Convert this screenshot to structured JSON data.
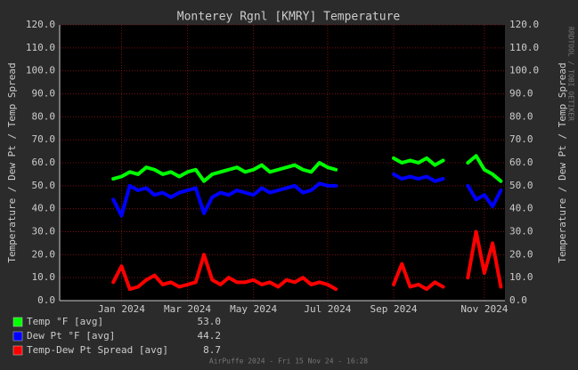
{
  "chart_data": {
    "type": "line",
    "title": "Monterey Rgnl [KMRY] Temperature",
    "y_label": "Temperature / Dew Pt / Temp Spread",
    "side_text": "RRDTOOL / TOBI OETIKER",
    "footer": "AirPuffe 2024 - Fri 15 Nov 24 - 16:28",
    "categories": [
      null,
      null,
      null,
      null,
      null,
      null,
      null,
      "Jan 2024",
      null,
      null,
      null,
      null,
      null,
      null,
      null,
      "Mar 2024",
      null,
      null,
      null,
      null,
      null,
      null,
      null,
      "May 2024",
      null,
      null,
      null,
      null,
      null,
      null,
      null,
      null,
      "Jul 2024",
      null,
      null,
      null,
      null,
      null,
      null,
      null,
      "Sep 2024",
      null,
      null,
      null,
      null,
      null,
      null,
      null,
      null,
      null,
      null,
      "Nov 2024",
      null,
      null
    ],
    "ylim": [
      0,
      120
    ],
    "yticks": [
      {
        "value": 0,
        "label": "0.0"
      },
      {
        "value": 10,
        "label": "10.0"
      },
      {
        "value": 20,
        "label": "20.0"
      },
      {
        "value": 30,
        "label": "30.0"
      },
      {
        "value": 40,
        "label": "40.0"
      },
      {
        "value": 50,
        "label": "50.0"
      },
      {
        "value": 60,
        "label": "60.0"
      },
      {
        "value": 70,
        "label": "70.0"
      },
      {
        "value": 80,
        "label": "80.0"
      },
      {
        "value": 90,
        "label": "90.0"
      },
      {
        "value": 100,
        "label": "100.0"
      },
      {
        "value": 110,
        "label": "110.0"
      },
      {
        "value": 120,
        "label": "120.0"
      }
    ],
    "grid": true,
    "series": [
      {
        "name": "Temp °F [avg]",
        "legend_value": "53.0",
        "color": "#00ff00",
        "values": [
          null,
          null,
          null,
          null,
          null,
          null,
          53,
          54,
          56,
          55,
          58,
          57,
          55,
          56,
          54,
          56,
          57,
          52,
          55,
          56,
          57,
          58,
          56,
          57,
          59,
          56,
          57,
          58,
          59,
          57,
          56,
          60,
          58,
          57,
          null,
          null,
          null,
          null,
          null,
          null,
          62,
          60,
          61,
          60,
          62,
          59,
          61,
          null,
          null,
          60,
          63,
          57,
          55,
          52
        ]
      },
      {
        "name": "Dew Pt °F [avg]",
        "legend_value": "44.2",
        "color": "#0000ff",
        "values": [
          null,
          null,
          null,
          null,
          null,
          null,
          44,
          37,
          50,
          48,
          49,
          46,
          47,
          45,
          47,
          48,
          49,
          38,
          45,
          47,
          46,
          48,
          47,
          46,
          49,
          47,
          48,
          49,
          50,
          47,
          48,
          51,
          50,
          50,
          null,
          null,
          null,
          null,
          null,
          null,
          55,
          53,
          54,
          53,
          54,
          52,
          53,
          null,
          null,
          50,
          44,
          46,
          41,
          48
        ]
      },
      {
        "name": "Temp-Dew Pt Spread [avg]",
        "legend_value": "8.7",
        "color": "#ff0000",
        "values": [
          null,
          null,
          null,
          null,
          null,
          null,
          8,
          15,
          5,
          6,
          9,
          11,
          7,
          8,
          6,
          7,
          8,
          20,
          9,
          7,
          10,
          8,
          8,
          9,
          7,
          8,
          6,
          9,
          8,
          10,
          7,
          8,
          7,
          5,
          null,
          null,
          null,
          null,
          null,
          null,
          7,
          16,
          6,
          7,
          5,
          8,
          6,
          null,
          null,
          10,
          30,
          12,
          25,
          6
        ]
      }
    ]
  }
}
